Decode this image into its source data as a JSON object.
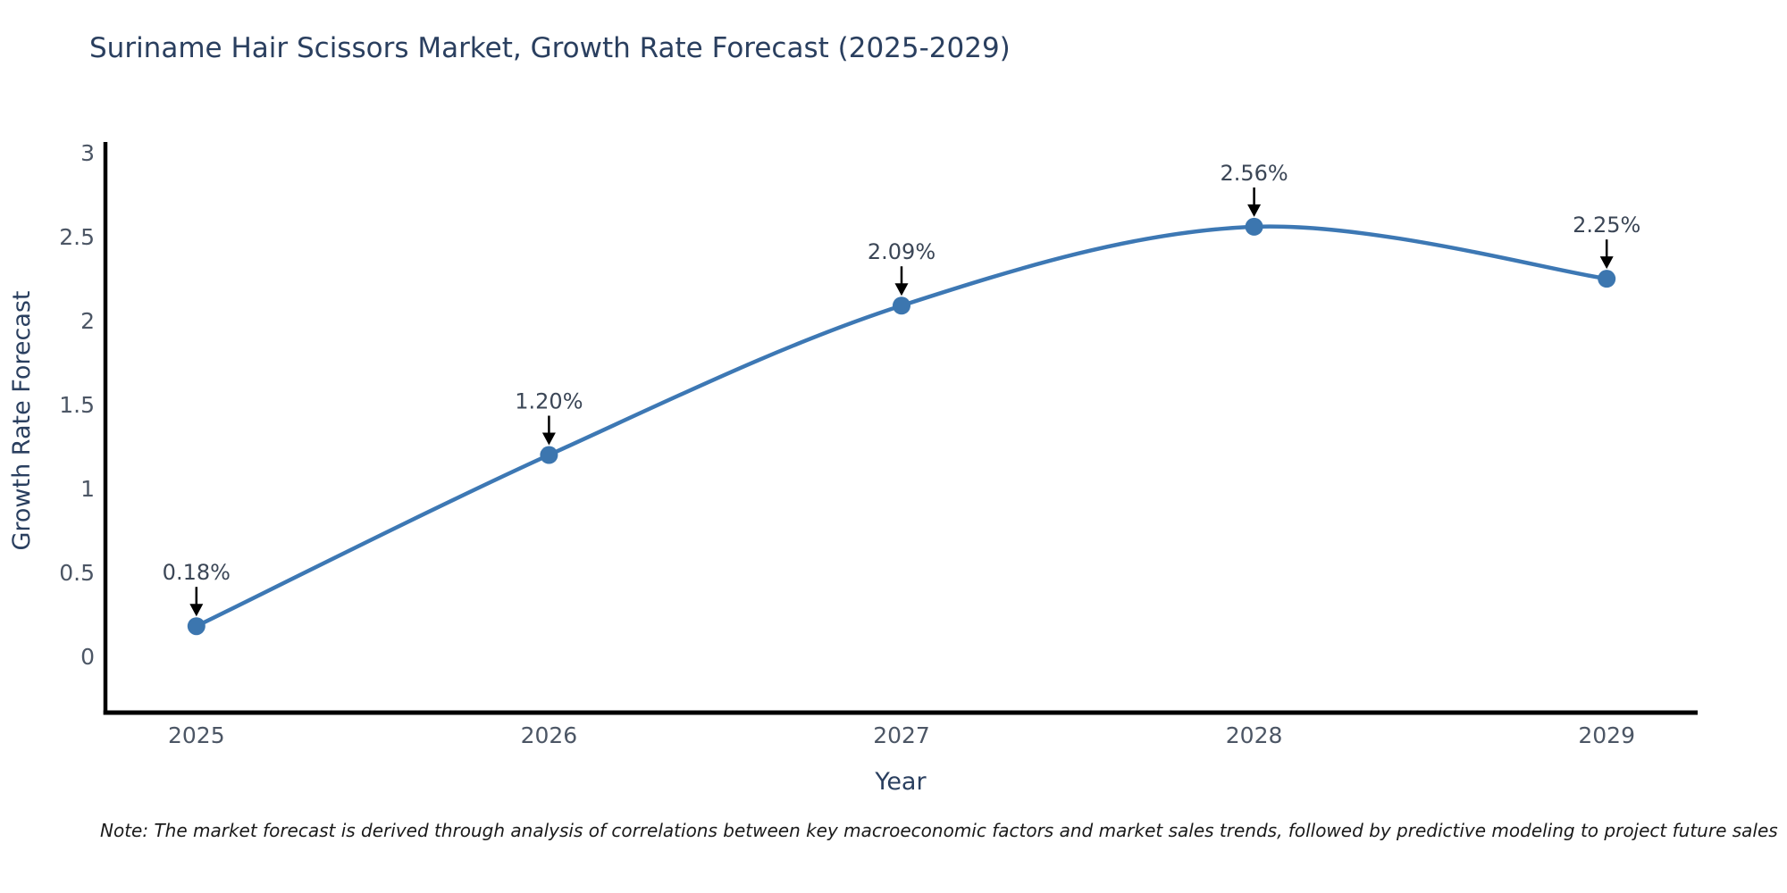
{
  "header": {
    "title": "Suriname Hair Scissors Market, Growth Rate Forecast (2025-2029)"
  },
  "footnote": {
    "text": "Note: The market forecast is derived through analysis of correlations between key macroeconomic factors and market sales trends, followed by predictive modeling to project future sales"
  },
  "chart_data": {
    "type": "line",
    "title": "Suriname Hair Scissors Market, Growth Rate Forecast (2025-2029)",
    "xlabel": "Year",
    "ylabel": "Growth Rate Forecast",
    "line_shape": "spline",
    "grid": false,
    "legend": "none",
    "x": [
      2025,
      2026,
      2027,
      2028,
      2029
    ],
    "values": [
      0.18,
      1.2,
      2.09,
      2.56,
      2.25
    ],
    "point_labels": [
      "0.18%",
      "1.20%",
      "2.09%",
      "2.56%",
      "2.25%"
    ],
    "xtick_labels": [
      "2025",
      "2026",
      "2027",
      "2028",
      "2029"
    ],
    "ytick_values": [
      0,
      0.5,
      1,
      1.5,
      2,
      2.5,
      3
    ],
    "ytick_labels": [
      "0",
      "0.5",
      "1",
      "1.5",
      "2",
      "2.5",
      "3"
    ],
    "xlim": [
      2024.742,
      2029.258
    ],
    "ylim": [
      -0.335,
      3.065
    ],
    "colors": {
      "line": "#3d78b4",
      "marker": "#3c76af",
      "axis": "#000000",
      "title": "#2a3f5f",
      "tick": "#4c5665",
      "annotation_text": "#3b4656",
      "annotation_arrow": "#000000"
    }
  }
}
